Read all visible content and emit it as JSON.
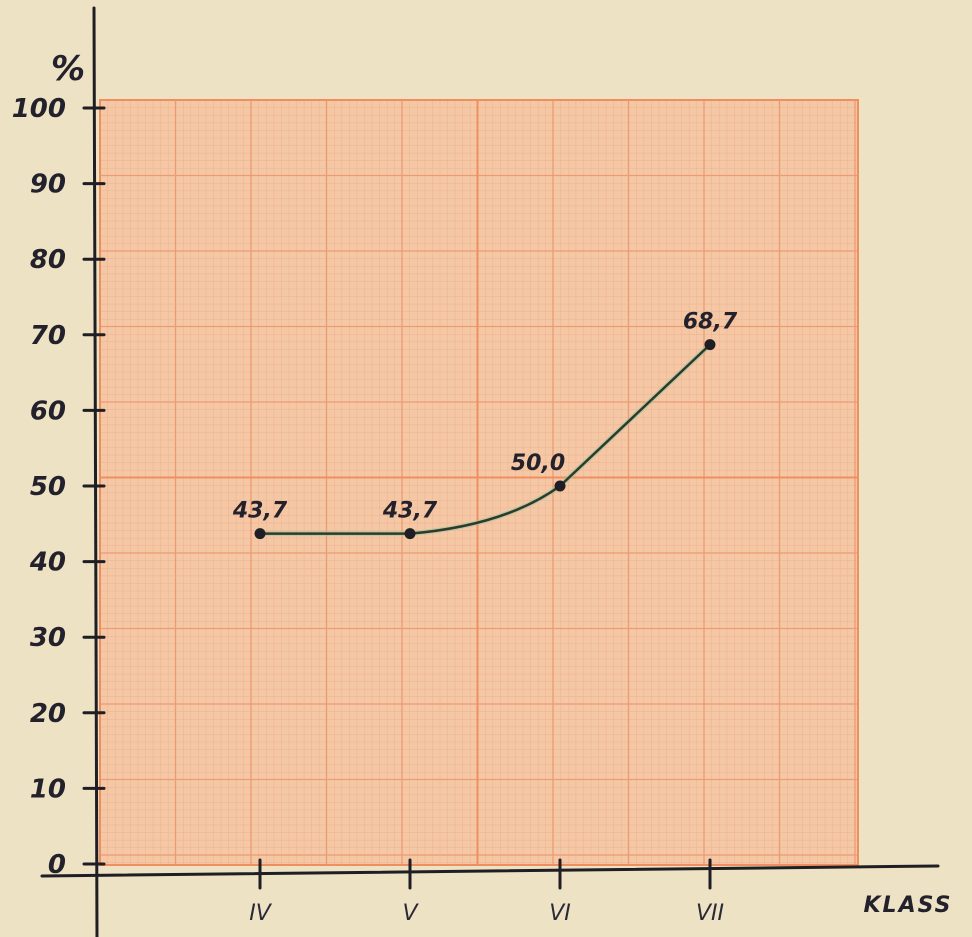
{
  "chart_data": {
    "type": "line",
    "title": "",
    "ylabel": "%",
    "xlabel": "KLASS",
    "categories": [
      "IV",
      "V",
      "VI",
      "VII"
    ],
    "values": [
      43.7,
      43.7,
      50.0,
      68.7
    ],
    "data_labels": [
      "43,7",
      "43,7",
      "50,0",
      "68,7"
    ],
    "ylim": [
      0,
      100
    ],
    "yticks": [
      0,
      10,
      20,
      30,
      40,
      50,
      60,
      70,
      80,
      90,
      100
    ],
    "grid": true,
    "legend": "none",
    "colors": {
      "paper": "#eee2c4",
      "graph_paper": "#f4c7a5",
      "grid_fine": "#f0a985",
      "grid_major": "#ef8f5f",
      "axis": "#1f1e24",
      "line": "#2e3a2e",
      "text": "#23222c"
    }
  }
}
